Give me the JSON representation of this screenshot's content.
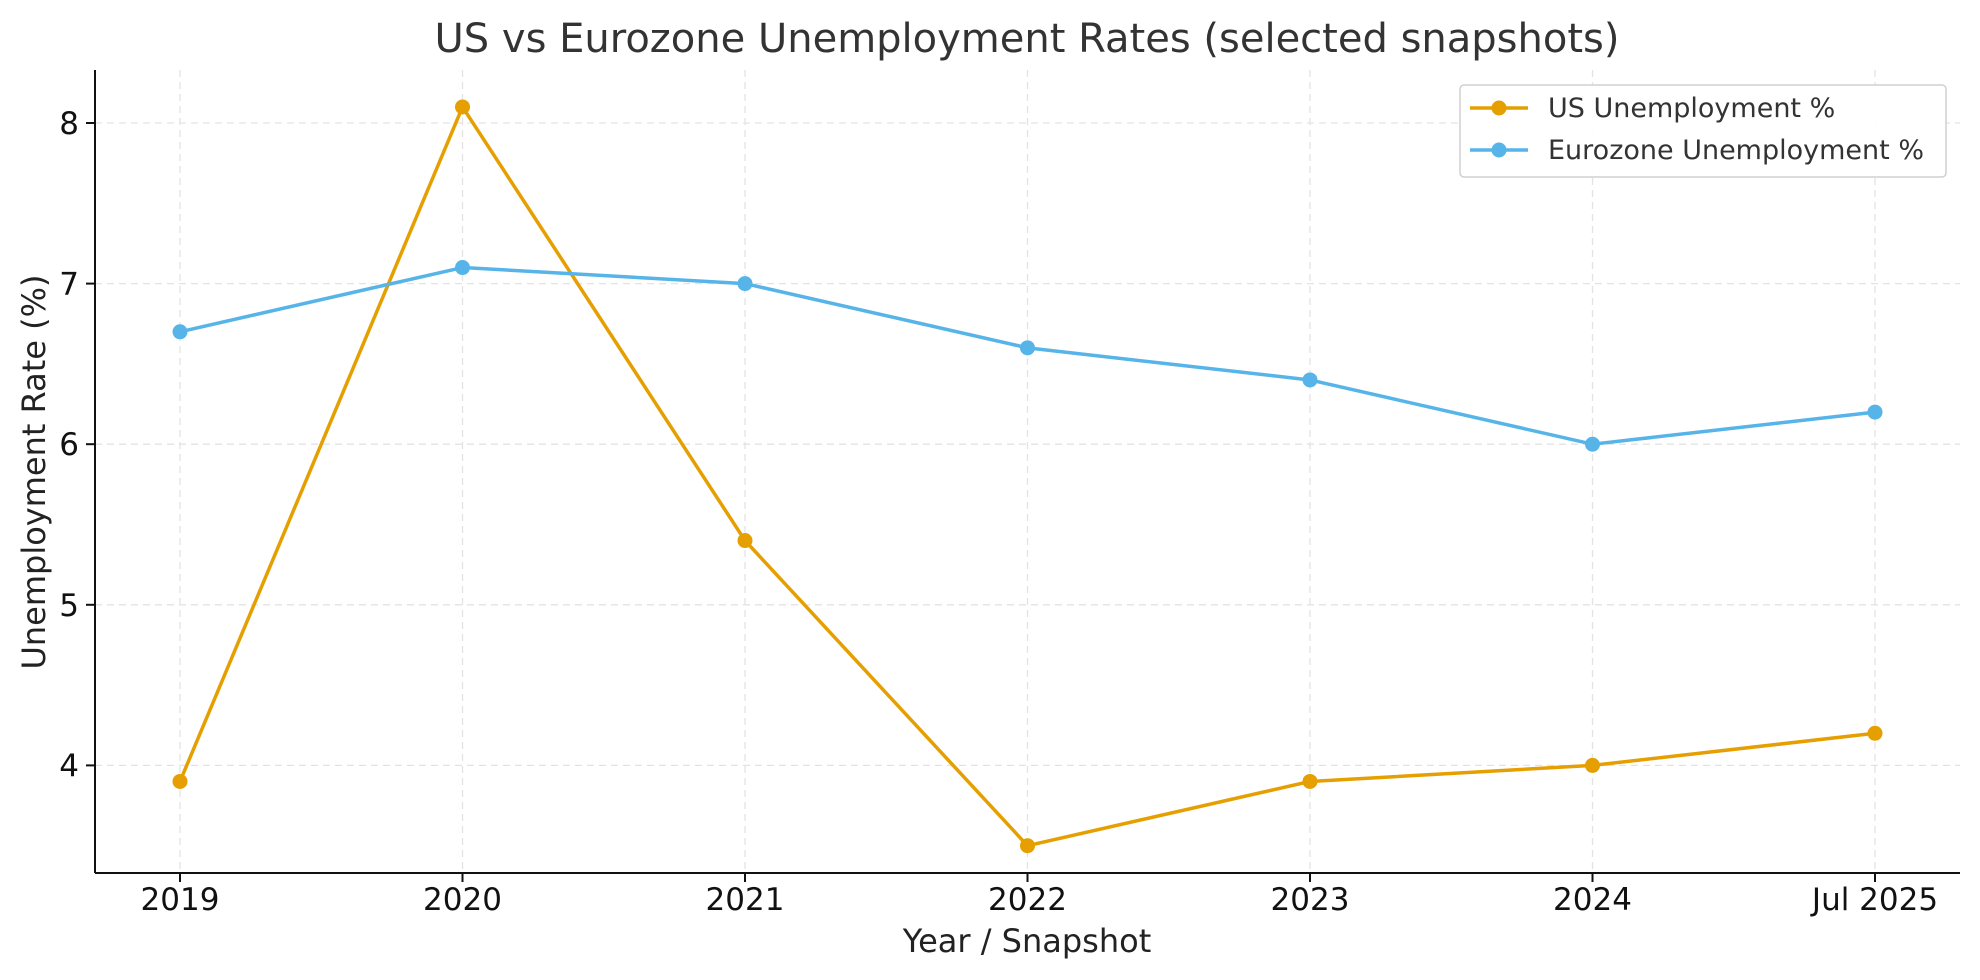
{
  "chart_data": {
    "type": "line",
    "title": "US vs Eurozone Unemployment Rates (selected snapshots)",
    "xlabel": "Year / Snapshot",
    "ylabel": "Unemployment Rate (%)",
    "categories": [
      "2019",
      "2020",
      "2021",
      "2022",
      "2023",
      "2024",
      "Jul 2025"
    ],
    "yticks": [
      4,
      5,
      6,
      7,
      8
    ],
    "ylim": [
      3.33,
      8.33
    ],
    "grid": true,
    "legend_position": "top-right",
    "series": [
      {
        "name": "US Unemployment %",
        "color": "#E69F00",
        "values": [
          3.9,
          8.1,
          5.4,
          3.5,
          3.9,
          4.0,
          4.2
        ]
      },
      {
        "name": "Eurozone Unemployment %",
        "color": "#56B4E9",
        "values": [
          6.7,
          7.1,
          7.0,
          6.6,
          6.4,
          6.0,
          6.2
        ]
      }
    ]
  }
}
